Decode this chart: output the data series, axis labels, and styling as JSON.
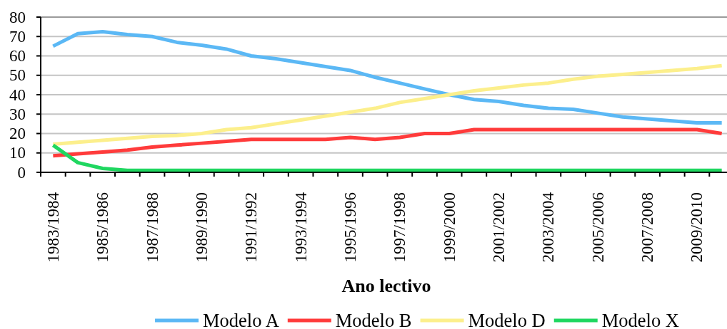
{
  "chart_data": {
    "type": "line",
    "xlabel": "Ano lectivo",
    "categories": [
      "1983/1984",
      null,
      "1985/1986",
      null,
      "1987/1988",
      null,
      "1989/1990",
      null,
      "1991/1992",
      null,
      "1993/1994",
      null,
      "1995/1996",
      null,
      "1997/1998",
      null,
      "1999/2000",
      null,
      "2001/2002",
      null,
      "2003/2004",
      null,
      "2005/2006",
      null,
      "2007/2008",
      null,
      "2009/2010",
      null
    ],
    "series": [
      {
        "name": "Modelo A",
        "color": "#5bb8f5",
        "values": [
          65,
          71.5,
          72.5,
          71,
          70,
          67,
          65.5,
          63.5,
          60,
          58.5,
          56.5,
          54.5,
          52.5,
          49,
          46,
          43,
          40,
          37.5,
          36.5,
          34.5,
          33,
          32.5,
          30.5,
          28.5,
          27.5,
          26.5,
          25.5,
          25.5
        ]
      },
      {
        "name": "Modelo B",
        "color": "#ff3b3b",
        "values": [
          8.5,
          9.5,
          10.5,
          11.5,
          13,
          14,
          15,
          16,
          17,
          17,
          17,
          17,
          18,
          17,
          18,
          20,
          20,
          22,
          22,
          22,
          22,
          22,
          22,
          22,
          22,
          22,
          22,
          20
        ]
      },
      {
        "name": "Modelo D",
        "color": "#fcef8c",
        "values": [
          14.5,
          15.5,
          16.5,
          17.5,
          18.5,
          19,
          20,
          22,
          23,
          25,
          27,
          29,
          31,
          33,
          36,
          38,
          40,
          42,
          43.5,
          45,
          46,
          48,
          49.5,
          50.5,
          51.5,
          52.5,
          53.5,
          55
        ]
      },
      {
        "name": "Modelo X",
        "color": "#1fd760",
        "values": [
          14,
          5,
          2,
          1,
          1,
          1,
          1,
          1,
          1,
          1,
          1,
          1,
          1,
          1,
          1,
          1,
          1,
          1,
          1,
          1,
          1,
          1,
          1,
          1,
          1,
          1,
          1,
          1
        ]
      }
    ],
    "ylim": [
      0,
      80
    ],
    "yticks": [
      0,
      10,
      20,
      30,
      40,
      50,
      60,
      70,
      80
    ],
    "grid": "y",
    "legend": "bottom",
    "line_style": "solid"
  }
}
